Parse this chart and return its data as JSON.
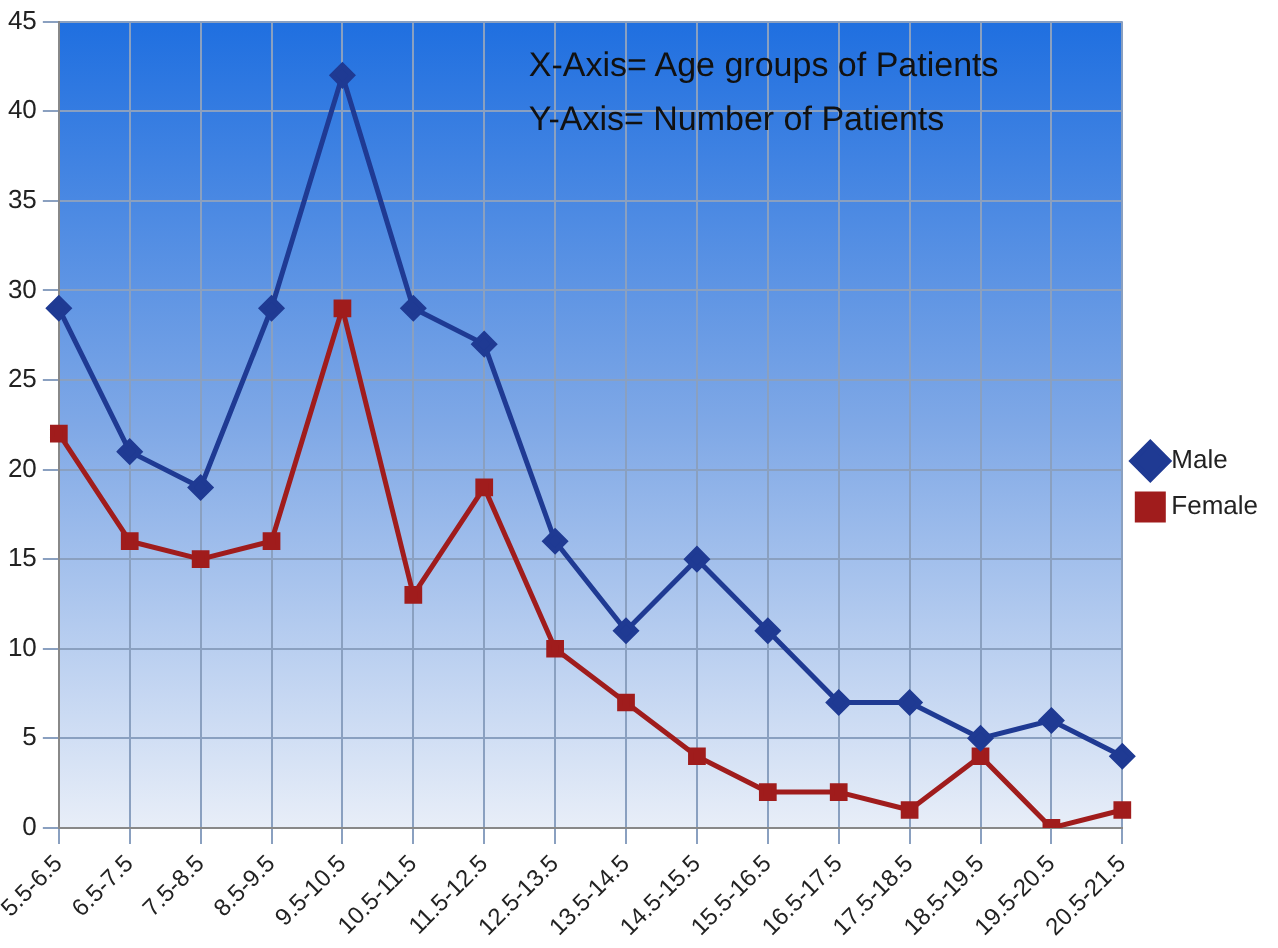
{
  "chart_data": {
    "type": "line",
    "categories": [
      "5.5-6.5",
      "6.5-7.5",
      "7.5-8.5",
      "8.5-9.5",
      "9.5-10.5",
      "10.5-11.5",
      "11.5-12.5",
      "12.5-13.5",
      "13.5-14.5",
      "14.5-15.5",
      "15.5-16.5",
      "16.5-17.5",
      "17.5-18.5",
      "18.5-19.5",
      "19.5-20.5",
      "20.5-21.5"
    ],
    "series": [
      {
        "name": "Male",
        "color": "#1f3a93",
        "marker": "diamond",
        "values": [
          29,
          21,
          19,
          29,
          42,
          29,
          27,
          16,
          11,
          15,
          11,
          7,
          7,
          5,
          6,
          4
        ]
      },
      {
        "name": "Female",
        "color": "#a01c1c",
        "marker": "square",
        "values": [
          22,
          16,
          15,
          16,
          29,
          13,
          19,
          10,
          7,
          4,
          2,
          2,
          1,
          4,
          0,
          1
        ]
      }
    ],
    "ylim": [
      0,
      45
    ],
    "yticks": [
      0,
      5,
      10,
      15,
      20,
      25,
      30,
      35,
      40,
      45
    ],
    "grid": true,
    "legend": "right",
    "line_style": "solid",
    "annotations": [
      "X-Axis= Age groups of Patients",
      "Y-Axis= Number of Patients"
    ]
  }
}
